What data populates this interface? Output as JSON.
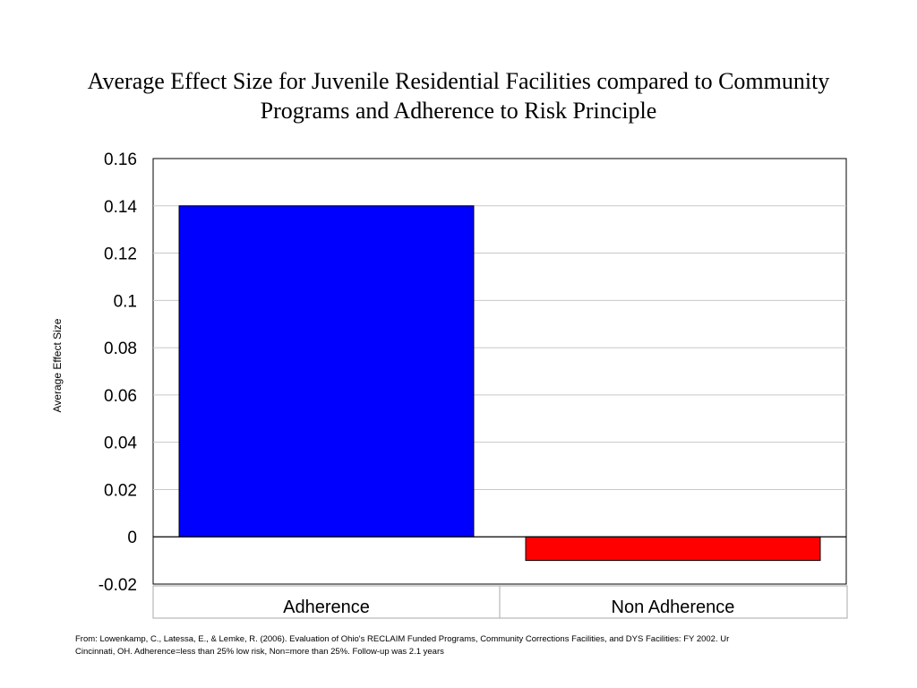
{
  "chart_data": {
    "type": "bar",
    "title": "Average  Effect Size for Juvenile Residential Facilities compared to Community Programs and Adherence to Risk Principle",
    "ylabel": "Average Effect Size",
    "xlabel": "",
    "categories": [
      "Adherence",
      "Non Adherence"
    ],
    "values": [
      0.14,
      -0.01
    ],
    "bar_colors": [
      "#0000ff",
      "#ff0000"
    ],
    "ylim": [
      -0.02,
      0.16
    ],
    "yticks": [
      "0.16",
      "0.14",
      "0.12",
      "0.1",
      "0.08",
      "0.06",
      "0.04",
      "0.02",
      "0",
      "-0.02"
    ],
    "grid": true,
    "legend": "none"
  },
  "footnote": "From: Lowenkamp, C., Latessa, E.,  & Lemke, R. (2006). Evaluation of Ohio's RECLAIM Funded Programs, Community Corrections Facilities, and DYS Facilities: FY 2002.  Ur\nCincinnati, OH.  Adherence=less than 25% low risk, Non=more than 25%. Follow-up was 2.1 years"
}
